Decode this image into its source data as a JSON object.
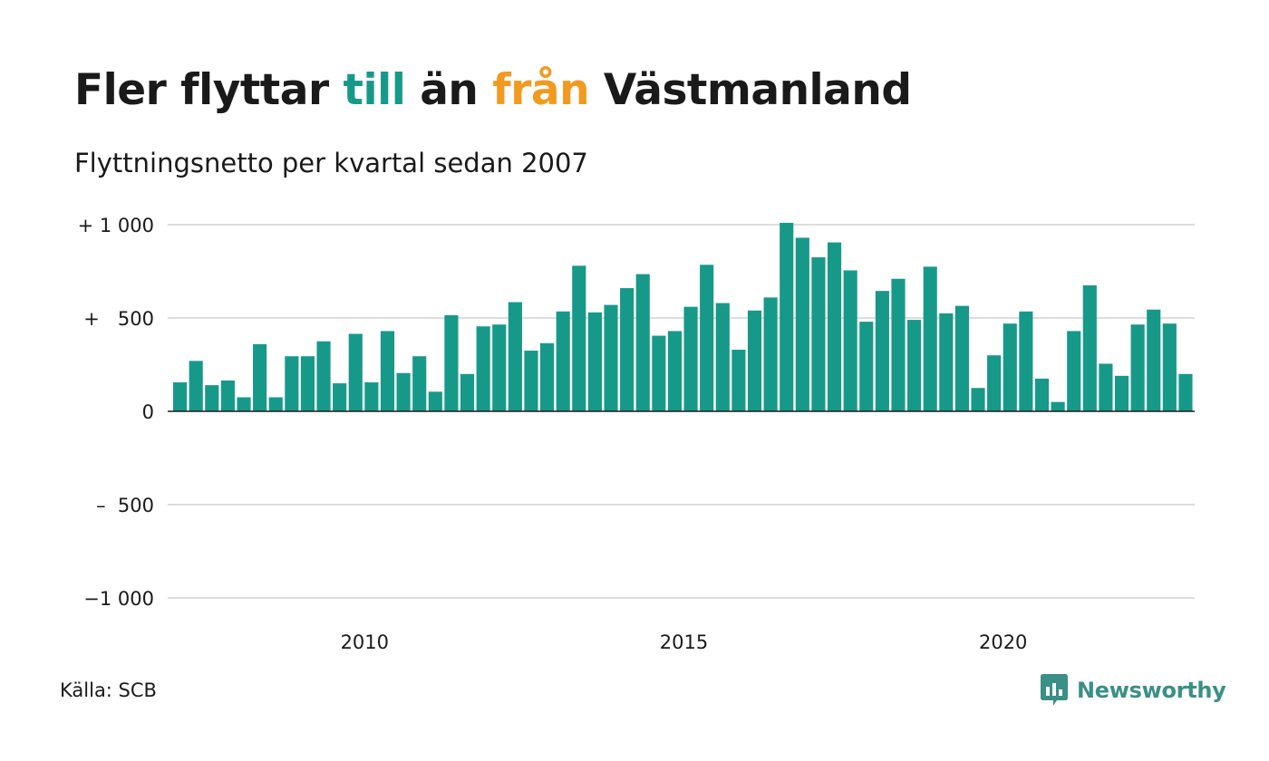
{
  "title": {
    "part1": "Fler flyttar ",
    "highlight1": "till",
    "part2": " än ",
    "highlight2": "från",
    "part3": " Västmanland"
  },
  "subtitle": "Flyttningsnetto per kvartal sedan 2007",
  "source": "Källa: SCB",
  "brand": "Newsworthy",
  "colors": {
    "bar": "#17998a",
    "highlight_till": "#17998a",
    "highlight_fran": "#f29a1f",
    "brand": "#3a8f86",
    "grid": "#dddddd"
  },
  "chart_data": {
    "type": "bar",
    "title": "Flyttningsnetto per kvartal sedan 2007",
    "ylim": [
      -1000,
      1000
    ],
    "yticks": [
      {
        "value": 1000,
        "label": "+ 1 000"
      },
      {
        "value": 500,
        "label": "+   500"
      },
      {
        "value": 0,
        "label": "0"
      },
      {
        "value": -500,
        "label": "–  500"
      },
      {
        "value": -1000,
        "label": "−1 000"
      }
    ],
    "xticks": [
      {
        "year": 2010,
        "label": "2010"
      },
      {
        "year": 2015,
        "label": "2015"
      },
      {
        "year": 2020,
        "label": "2020"
      }
    ],
    "start_year": 2007,
    "grid": true,
    "categories": [
      "2007 K1",
      "2007 K2",
      "2007 K3",
      "2007 K4",
      "2008 K1",
      "2008 K2",
      "2008 K3",
      "2008 K4",
      "2009 K1",
      "2009 K2",
      "2009 K3",
      "2009 K4",
      "2010 K1",
      "2010 K2",
      "2010 K3",
      "2010 K4",
      "2011 K1",
      "2011 K2",
      "2011 K3",
      "2011 K4",
      "2012 K1",
      "2012 K2",
      "2012 K3",
      "2012 K4",
      "2013 K1",
      "2013 K2",
      "2013 K3",
      "2013 K4",
      "2014 K1",
      "2014 K2",
      "2014 K3",
      "2014 K4",
      "2015 K1",
      "2015 K2",
      "2015 K3",
      "2015 K4",
      "2016 K1",
      "2016 K2",
      "2016 K3",
      "2016 K4",
      "2017 K1",
      "2017 K2",
      "2017 K3",
      "2017 K4",
      "2018 K1",
      "2018 K2",
      "2018 K3",
      "2018 K4",
      "2019 K1",
      "2019 K2",
      "2019 K3",
      "2019 K4",
      "2020 K1",
      "2020 K2",
      "2020 K3",
      "2020 K4",
      "2021 K1",
      "2021 K2",
      "2021 K3",
      "2021 K4",
      "2022 K1",
      "2022 K2",
      "2022 K3",
      "2022 K4"
    ],
    "values": [
      155,
      270,
      140,
      165,
      75,
      360,
      75,
      295,
      295,
      375,
      150,
      415,
      155,
      430,
      205,
      295,
      105,
      515,
      200,
      455,
      465,
      585,
      325,
      365,
      535,
      780,
      530,
      570,
      660,
      735,
      405,
      430,
      560,
      785,
      580,
      330,
      540,
      610,
      1010,
      930,
      825,
      905,
      755,
      480,
      645,
      710,
      490,
      775,
      525,
      565,
      125,
      300,
      470,
      535,
      175,
      50,
      430,
      675,
      255,
      190,
      465,
      545,
      470,
      200
    ]
  }
}
